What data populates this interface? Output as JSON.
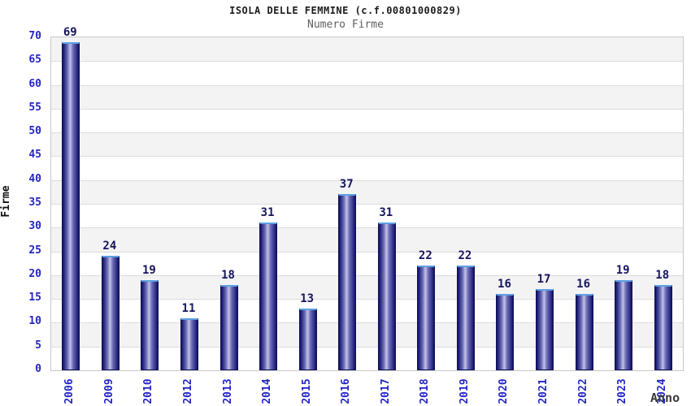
{
  "header": {
    "title": "ISOLA DELLE FEMMINE (c.f.00801000829)",
    "subtitle": "Numero Firme"
  },
  "chart_data": {
    "type": "bar",
    "title": "ISOLA DELLE FEMMINE (c.f.00801000829)",
    "subtitle": "Numero Firme",
    "categories": [
      "2006",
      "2009",
      "2010",
      "2012",
      "2013",
      "2014",
      "2015",
      "2016",
      "2017",
      "2018",
      "2019",
      "2020",
      "2021",
      "2022",
      "2023",
      "2024"
    ],
    "values": [
      69,
      24,
      19,
      11,
      18,
      31,
      13,
      37,
      31,
      22,
      22,
      16,
      17,
      16,
      19,
      18
    ],
    "xlabel": "Anno",
    "ylabel": "Firme",
    "ylim": [
      0,
      70
    ],
    "ytick_step": 5,
    "yticks": [
      0,
      5,
      10,
      15,
      20,
      25,
      30,
      35,
      40,
      45,
      50,
      55,
      60,
      65,
      70
    ],
    "grid": true,
    "bands_alternating": true,
    "legend": false,
    "bar_value_labels": true
  },
  "colors": {
    "title": "#1c1c1c",
    "subtitle": "#5f5f5f",
    "tick_label": "#2424c8",
    "value_label": "#15155f",
    "axis_label": "#111111",
    "xaxis_title": "#3a3a3a",
    "band_gray": "#f3f3f3",
    "band_white": "#ffffff",
    "gridline": "#dcdcdc",
    "plot_border": "#c8c8c8",
    "bar_border": "#10105a",
    "bar_cap": "#5da0e0",
    "bar_gradient": [
      "#12125e",
      "#2a2a84",
      "#6c6cb4",
      "#c2c2ea",
      "#6c6cb4",
      "#2a2a84",
      "#12125e"
    ]
  }
}
